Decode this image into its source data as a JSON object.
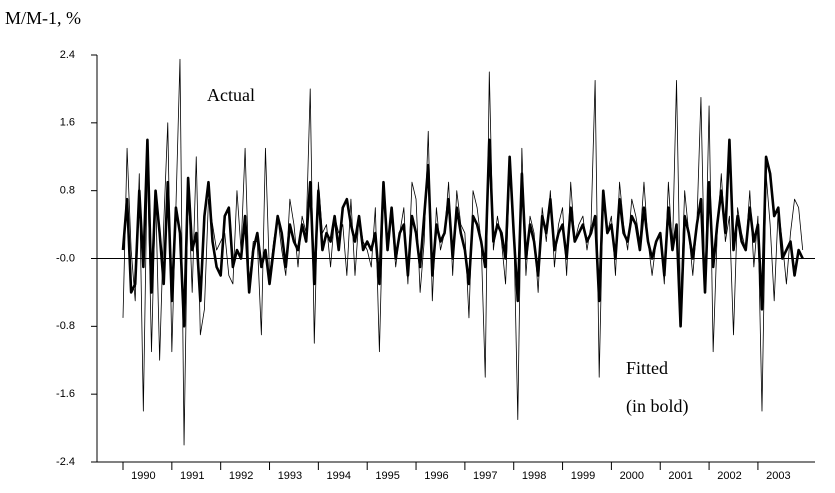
{
  "chart_data": {
    "type": "line",
    "y_label": "M/M-1, %",
    "annotation": "(in bold)",
    "categories": [
      null,
      null,
      null,
      null,
      null,
      null,
      "1990",
      null,
      null,
      null,
      null,
      null,
      null,
      null,
      null,
      null,
      null,
      null,
      "1991",
      null,
      null,
      null,
      null,
      null,
      null,
      null,
      null,
      null,
      null,
      null,
      "1992",
      null,
      null,
      null,
      null,
      null,
      null,
      null,
      null,
      null,
      null,
      null,
      "1993",
      null,
      null,
      null,
      null,
      null,
      null,
      null,
      null,
      null,
      null,
      null,
      "1994",
      null,
      null,
      null,
      null,
      null,
      null,
      null,
      null,
      null,
      null,
      null,
      "1995",
      null,
      null,
      null,
      null,
      null,
      null,
      null,
      null,
      null,
      null,
      null,
      "1996",
      null,
      null,
      null,
      null,
      null,
      null,
      null,
      null,
      null,
      null,
      null,
      "1997",
      null,
      null,
      null,
      null,
      null,
      null,
      null,
      null,
      null,
      null,
      null,
      "1998",
      null,
      null,
      null,
      null,
      null,
      null,
      null,
      null,
      null,
      null,
      null,
      "1999",
      null,
      null,
      null,
      null,
      null,
      null,
      null,
      null,
      null,
      null,
      null,
      "2000",
      null,
      null,
      null,
      null,
      null,
      null,
      null,
      null,
      null,
      null,
      null,
      "2001",
      null,
      null,
      null,
      null,
      null,
      null,
      null,
      null,
      null,
      null,
      null,
      "2002",
      null,
      null,
      null,
      null,
      null,
      null,
      null,
      null,
      null,
      null,
      null,
      "2003",
      null,
      null,
      null,
      null,
      null
    ],
    "series": [
      {
        "name": "Actual",
        "color": "#000000",
        "values": [
          -0.7,
          1.3,
          0.1,
          -0.5,
          1.0,
          -1.8,
          1.2,
          -1.1,
          0.8,
          -1.2,
          0.4,
          1.6,
          -1.1,
          0.6,
          2.35,
          -2.2,
          0.9,
          -0.4,
          1.2,
          -0.9,
          -0.6,
          0.7,
          0.4,
          0.1,
          0.2,
          0.3,
          -0.2,
          -0.3,
          0.8,
          0.1,
          1.3,
          -0.3,
          0.2,
          0.2,
          -0.9,
          1.3,
          -0.2,
          0.2,
          0.5,
          0.1,
          -0.2,
          0.7,
          0.4,
          -0.1,
          0.5,
          0.3,
          2.0,
          -1.0,
          0.9,
          0.3,
          0.4,
          -0.1,
          0.5,
          0.3,
          0.4,
          -0.2,
          0.7,
          -0.2,
          0.5,
          0.2,
          0.1,
          -0.1,
          0.6,
          -1.1,
          0.8,
          0.2,
          0.5,
          -0.1,
          0.3,
          0.6,
          -0.3,
          0.9,
          0.7,
          -0.4,
          0.2,
          1.5,
          -0.5,
          0.6,
          0.1,
          0.3,
          0.9,
          -0.2,
          0.8,
          0.4,
          0.3,
          -0.7,
          0.8,
          0.6,
          0.2,
          -1.4,
          2.2,
          0.1,
          0.5,
          0.2,
          -0.3,
          1.0,
          0.4,
          -1.9,
          1.3,
          -0.2,
          0.5,
          0.3,
          -0.4,
          0.6,
          0.2,
          0.8,
          -0.1,
          0.4,
          0.6,
          -0.2,
          0.9,
          0.2,
          0.4,
          0.5,
          0.1,
          0.4,
          2.1,
          -1.4,
          0.8,
          0.3,
          0.5,
          -0.2,
          0.9,
          0.4,
          0.1,
          0.7,
          0.5,
          0.2,
          0.9,
          0.2,
          -0.2,
          0.2,
          0.3,
          -0.3,
          0.9,
          0.1,
          2.1,
          -0.6,
          0.8,
          0.3,
          -0.2,
          0.4,
          1.9,
          -0.4,
          1.8,
          -1.1,
          0.3,
          1.0,
          0.2,
          0.5,
          -0.9,
          0.6,
          0.3,
          0.1,
          0.8,
          -0.1,
          0.5,
          -1.8,
          1.0,
          0.4,
          -0.5,
          0.6,
          0.2,
          -0.3,
          0.3,
          0.7,
          0.6,
          0.1
        ]
      },
      {
        "name": "Fitted",
        "color": "#000000",
        "values": [
          0.1,
          0.7,
          -0.4,
          -0.3,
          0.8,
          -0.1,
          1.4,
          -0.4,
          0.8,
          0.3,
          -0.3,
          0.9,
          -0.5,
          0.6,
          0.3,
          -0.8,
          0.95,
          0.1,
          0.3,
          -0.5,
          0.5,
          0.9,
          0.2,
          -0.1,
          -0.2,
          0.5,
          0.6,
          -0.1,
          0.1,
          0.0,
          0.5,
          -0.4,
          0.1,
          0.3,
          -0.1,
          0.1,
          -0.3,
          0.1,
          0.5,
          0.3,
          -0.1,
          0.4,
          0.2,
          0.1,
          0.4,
          0.2,
          0.9,
          -0.3,
          0.8,
          0.1,
          0.3,
          0.2,
          0.5,
          0.1,
          0.6,
          0.7,
          0.4,
          0.2,
          0.5,
          0.1,
          0.2,
          0.1,
          0.3,
          -0.3,
          0.9,
          0.1,
          0.6,
          0.0,
          0.3,
          0.4,
          -0.2,
          0.5,
          0.3,
          -0.1,
          0.5,
          1.1,
          -0.2,
          0.4,
          0.2,
          0.3,
          0.7,
          0.0,
          0.6,
          0.3,
          0.1,
          -0.3,
          0.5,
          0.4,
          0.2,
          -0.1,
          1.4,
          0.2,
          0.4,
          0.3,
          0.0,
          1.2,
          0.3,
          -0.5,
          1.0,
          0.0,
          0.4,
          0.2,
          -0.2,
          0.5,
          0.3,
          0.7,
          0.1,
          0.3,
          0.4,
          0.0,
          0.6,
          0.2,
          0.3,
          0.4,
          0.2,
          0.3,
          0.5,
          -0.5,
          0.8,
          0.3,
          0.4,
          0.0,
          0.7,
          0.3,
          0.2,
          0.5,
          0.4,
          0.1,
          0.6,
          0.2,
          0.0,
          0.2,
          0.3,
          -0.2,
          0.6,
          0.1,
          0.4,
          -0.8,
          0.5,
          0.3,
          0.0,
          0.4,
          0.7,
          -0.4,
          0.9,
          -0.1,
          0.4,
          0.8,
          0.3,
          1.4,
          0.1,
          0.5,
          0.2,
          0.1,
          0.6,
          0.2,
          0.4,
          -0.6,
          1.2,
          1.0,
          0.5,
          0.6,
          0.0,
          0.1,
          0.2,
          -0.2,
          0.1,
          0.0
        ]
      }
    ],
    "ylim": [
      -2.4,
      2.4
    ],
    "yticks": [
      -2.4,
      -1.6,
      -0.8,
      {
        "value": 0,
        "label": "-0.0"
      },
      0.8,
      1.6,
      2.4
    ]
  }
}
